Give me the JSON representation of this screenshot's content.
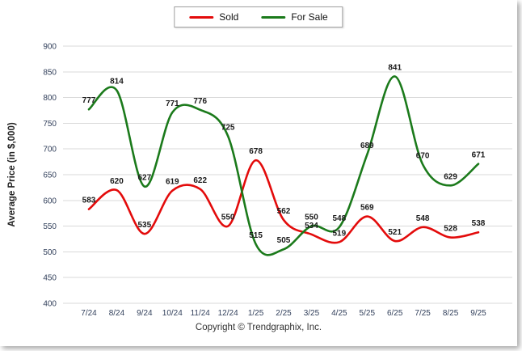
{
  "chart_data": {
    "type": "line",
    "title": "",
    "categories": [
      "7/24",
      "8/24",
      "9/24",
      "10/24",
      "11/24",
      "12/24",
      "1/25",
      "2/25",
      "3/25",
      "4/25",
      "5/25",
      "6/25",
      "7/25",
      "8/25",
      "9/25"
    ],
    "series": [
      {
        "name": "Sold",
        "color": "#e30b0b",
        "values": [
          583,
          620,
          535,
          619,
          622,
          550,
          678,
          562,
          534,
          519,
          569,
          521,
          548,
          528,
          538
        ]
      },
      {
        "name": "For Sale",
        "color": "#1b7a1b",
        "values": [
          777,
          814,
          627,
          771,
          776,
          725,
          515,
          505,
          550,
          548,
          689,
          841,
          670,
          629,
          671
        ]
      }
    ],
    "xlabel": "",
    "ylabel": "Average Price (in $,000)",
    "ylim": [
      400,
      900
    ],
    "ytick_step": 50,
    "grid": true,
    "legend_position": "top-center",
    "gridline_color": "#d9d9d9",
    "axis_text_color": "#33415c",
    "value_label_color": "#1a1a1a"
  },
  "footer": {
    "copyright": "Copyright © Trendgraphix, Inc."
  }
}
